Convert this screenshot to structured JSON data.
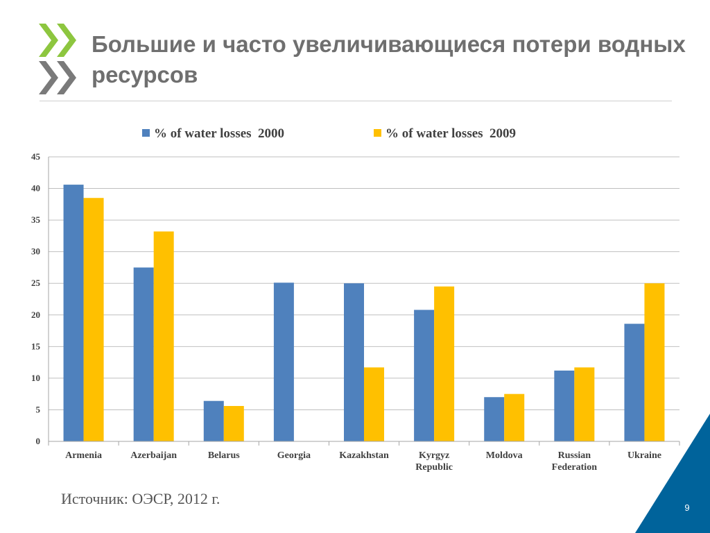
{
  "slide": {
    "title": "Большие и часто увеличивающиеся потери водных ресурсов",
    "source": "Источник: ОЭСР, 2012 г.",
    "page_number": "9",
    "logo_colors": [
      "#8dc63f",
      "#7a7a7a"
    ],
    "corner_color": "#00639b"
  },
  "chart_data": {
    "type": "bar",
    "categories": [
      "Armenia",
      "Azerbaijan",
      "Belarus",
      "Georgia",
      "Kazakhstan",
      "Kyrgyz Republic",
      "Moldova",
      "Russian Federation",
      "Ukraine"
    ],
    "category_lines": [
      [
        "Armenia"
      ],
      [
        "Azerbaijan"
      ],
      [
        "Belarus"
      ],
      [
        "Georgia"
      ],
      [
        "Kazakhstan"
      ],
      [
        "Kyrgyz",
        "Republic"
      ],
      [
        "Moldova"
      ],
      [
        "Russian",
        "Federation"
      ],
      [
        "Ukraine"
      ]
    ],
    "series": [
      {
        "name": "% of water losses  2000",
        "color": "#4f81bd",
        "values": [
          40.6,
          27.5,
          6.4,
          25.1,
          25.0,
          20.8,
          7.0,
          11.2,
          18.6
        ]
      },
      {
        "name": "% of water losses  2009",
        "color": "#ffc000",
        "values": [
          38.5,
          33.2,
          5.6,
          null,
          11.7,
          24.5,
          7.5,
          11.7,
          25.0
        ]
      }
    ],
    "ylim": [
      0,
      45
    ],
    "yticks": [
      0,
      5,
      10,
      15,
      20,
      25,
      30,
      35,
      40,
      45
    ],
    "grid": true,
    "legend": "top",
    "title": "",
    "xlabel": "",
    "ylabel": ""
  }
}
